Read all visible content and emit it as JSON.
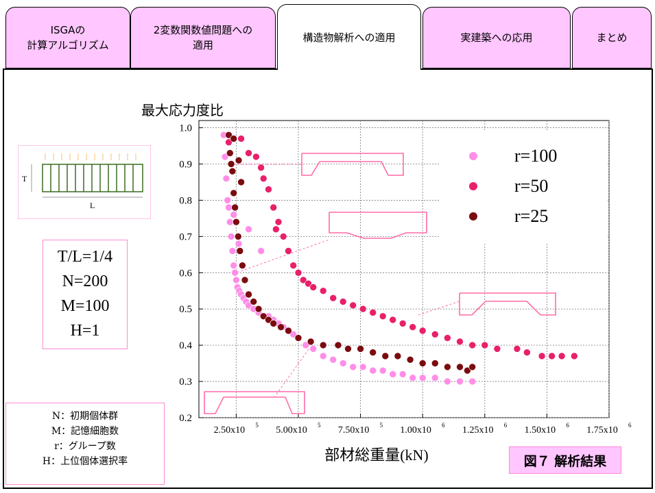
{
  "tabs": [
    {
      "label": "ISGAの\n計算アルゴリズム",
      "active": false
    },
    {
      "label": "2変数関数値問題への\n適用",
      "active": false
    },
    {
      "label": "構造物解析への適用",
      "active": true
    },
    {
      "label": "実建築への応用",
      "active": false
    },
    {
      "label": "まとめ",
      "active": false
    }
  ],
  "diagram": {
    "t_label": "T",
    "l_label": "L"
  },
  "params": {
    "line1": "T/L=1/4",
    "line2": "N=200",
    "line3": "M=100",
    "line4": "H=1"
  },
  "legend_notes": {
    "n": "N：初期個体群",
    "m": "M：記憶細胞数",
    "r": "r：グループ数",
    "h": "H：上位個体選択率"
  },
  "figure_caption": "図７ 解析結果",
  "colors": {
    "tab_bg": "#ffc6ff",
    "accent_pink": "#ff8ad0",
    "r100": "#ff8ee8",
    "r50": "#e8206a",
    "r25": "#7a0c10"
  },
  "chart_data": {
    "type": "scatter",
    "ylabel": "最大応力度比",
    "xlabel": "部材総重量(kN)",
    "xlim": [
      100000,
      1750000
    ],
    "ylim": [
      0.2,
      1.02
    ],
    "xticks": [
      250000,
      500000,
      750000,
      1000000,
      1250000,
      1500000,
      1750000
    ],
    "xtick_labels": [
      [
        "2.50x10",
        "5"
      ],
      [
        "5.00x10",
        "5"
      ],
      [
        "7.50x10",
        "5"
      ],
      [
        "1.00x10",
        "6"
      ],
      [
        "1.25x10",
        "6"
      ],
      [
        "1.50x10",
        "6"
      ],
      [
        "1.75x10",
        "6"
      ]
    ],
    "yticks": [
      0.2,
      0.3,
      0.4,
      0.5,
      0.6,
      0.7,
      0.8,
      0.9,
      1.0
    ],
    "ytick_labels": [
      "0.2",
      "0.3",
      "0.4",
      "0.5",
      "0.6",
      "0.7",
      "0.8",
      "0.9",
      "1.0"
    ],
    "grid": true,
    "legend_position": "top-right",
    "series": [
      {
        "name": "r=100",
        "color": "#ff8ee8",
        "x": [
          200000,
          205000,
          210000,
          215000,
          220000,
          225000,
          230000,
          235000,
          240000,
          245000,
          250000,
          255000,
          262000,
          270000,
          280000,
          290000,
          300000,
          320000,
          340000,
          360000,
          380000,
          400000,
          420000,
          440000,
          460000,
          480000,
          500000,
          530000,
          560000,
          600000,
          640000,
          680000,
          720000,
          760000,
          800000,
          840000,
          880000,
          920000,
          960000,
          1000000,
          1050000,
          1100000,
          1150000,
          1200000,
          350000,
          300000,
          260000,
          240000
        ],
        "y": [
          0.98,
          0.92,
          0.86,
          0.8,
          0.78,
          0.74,
          0.7,
          0.66,
          0.62,
          0.6,
          0.58,
          0.56,
          0.55,
          0.54,
          0.53,
          0.52,
          0.51,
          0.5,
          0.49,
          0.48,
          0.48,
          0.47,
          0.46,
          0.45,
          0.44,
          0.43,
          0.42,
          0.4,
          0.39,
          0.37,
          0.36,
          0.35,
          0.34,
          0.34,
          0.33,
          0.33,
          0.32,
          0.32,
          0.31,
          0.31,
          0.31,
          0.3,
          0.3,
          0.3,
          0.66,
          0.72,
          0.68,
          0.76
        ]
      },
      {
        "name": "r=50",
        "color": "#e8206a",
        "x": [
          220000,
          270000,
          330000,
          360000,
          380000,
          400000,
          420000,
          440000,
          460000,
          480000,
          500000,
          520000,
          540000,
          560000,
          600000,
          640000,
          680000,
          720000,
          760000,
          800000,
          840000,
          880000,
          920000,
          960000,
          1000000,
          1050000,
          1100000,
          1150000,
          1200000,
          1250000,
          1300000,
          1380000,
          1420000,
          1480000,
          1520000,
          1560000,
          1610000,
          300000,
          350000,
          410000
        ],
        "y": [
          0.96,
          0.97,
          0.92,
          0.86,
          0.83,
          0.78,
          0.74,
          0.7,
          0.66,
          0.62,
          0.6,
          0.58,
          0.57,
          0.56,
          0.55,
          0.53,
          0.52,
          0.51,
          0.5,
          0.49,
          0.48,
          0.47,
          0.46,
          0.45,
          0.44,
          0.43,
          0.42,
          0.41,
          0.4,
          0.4,
          0.39,
          0.39,
          0.38,
          0.37,
          0.37,
          0.37,
          0.37,
          0.93,
          0.89,
          0.72
        ]
      },
      {
        "name": "r=25",
        "color": "#7a0c10",
        "x": [
          220000,
          225000,
          230000,
          235000,
          240000,
          245000,
          250000,
          258000,
          265000,
          275000,
          285000,
          300000,
          320000,
          340000,
          360000,
          380000,
          400000,
          430000,
          460000,
          500000,
          550000,
          600000,
          660000,
          700000,
          750000,
          800000,
          850000,
          900000,
          950000,
          1000000,
          1050000,
          1100000,
          1150000,
          1180000,
          1200000,
          240000,
          260000,
          270000
        ],
        "y": [
          0.98,
          0.93,
          0.9,
          0.88,
          0.82,
          0.78,
          0.74,
          0.7,
          0.66,
          0.62,
          0.58,
          0.54,
          0.52,
          0.5,
          0.48,
          0.47,
          0.46,
          0.45,
          0.44,
          0.42,
          0.41,
          0.4,
          0.4,
          0.39,
          0.39,
          0.38,
          0.37,
          0.37,
          0.36,
          0.35,
          0.35,
          0.34,
          0.34,
          0.33,
          0.34,
          0.97,
          0.91,
          0.85
        ]
      }
    ]
  }
}
